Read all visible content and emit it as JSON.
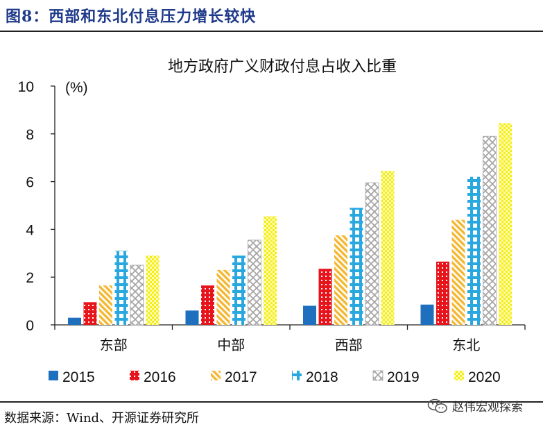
{
  "figure": {
    "label": "图8：西部和东北付息压力增长较快",
    "source": "数据来源：Wind、开源证券研究所",
    "watermark": "赵伟宏观探索",
    "watermark_icon": "wechat-icon"
  },
  "chart_data": {
    "type": "bar",
    "title": "地方政府广义财政付息占收入比重",
    "unit_label": "(%)",
    "categories": [
      "东部",
      "中部",
      "西部",
      "东北"
    ],
    "ylim": [
      0,
      10
    ],
    "yticks": [
      0,
      2,
      4,
      6,
      8,
      10
    ],
    "grid": false,
    "legend_position": "bottom",
    "series": [
      {
        "name": "2015",
        "values": [
          0.3,
          0.6,
          0.8,
          0.85
        ],
        "color": "#1f6fbf",
        "pattern": "solid"
      },
      {
        "name": "2016",
        "values": [
          0.95,
          1.65,
          2.35,
          2.65
        ],
        "color": "#e8141c",
        "pattern": "dots"
      },
      {
        "name": "2017",
        "values": [
          1.65,
          2.3,
          3.75,
          4.4
        ],
        "color": "#f5b731",
        "pattern": "diagonal"
      },
      {
        "name": "2018",
        "values": [
          3.1,
          2.9,
          4.9,
          6.2
        ],
        "color": "#29a8e0",
        "pattern": "bricks"
      },
      {
        "name": "2019",
        "values": [
          2.5,
          3.55,
          5.95,
          7.9
        ],
        "color": "#a6a6a6",
        "pattern": "diamond"
      },
      {
        "name": "2020",
        "values": [
          2.9,
          4.55,
          6.45,
          8.45
        ],
        "color": "#f2ee1c",
        "pattern": "checker"
      }
    ]
  }
}
